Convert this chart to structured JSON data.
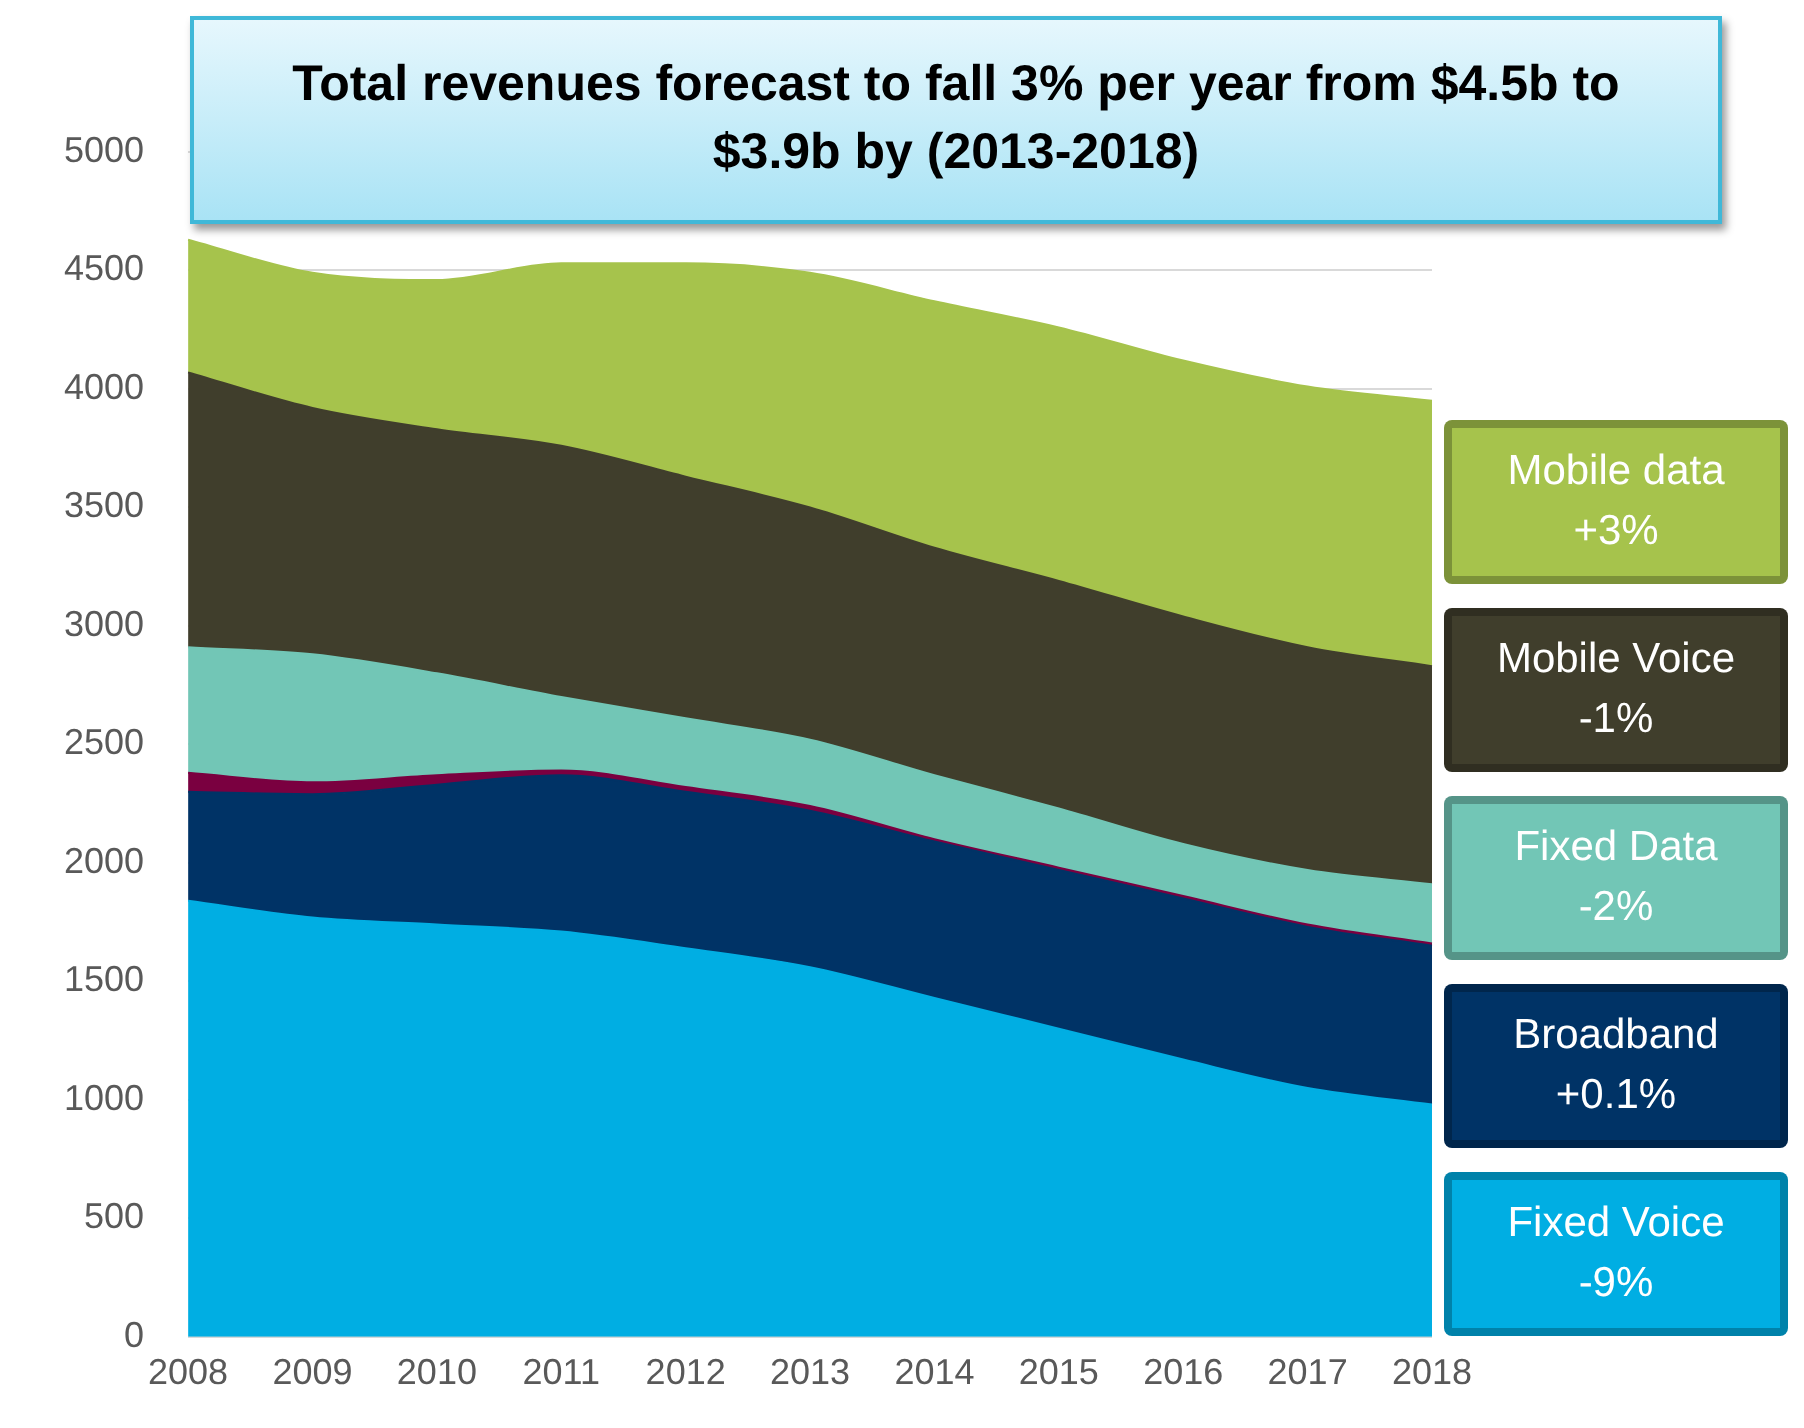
{
  "chart_data": {
    "type": "area",
    "title": "Total revenues forecast to fall 3% per year from $4.5b to $3.9b by (2013-2018)",
    "categories": [
      "2008",
      "2009",
      "2010",
      "2011",
      "2012",
      "2013",
      "2014",
      "2015",
      "2016",
      "2017",
      "2018"
    ],
    "stacked": true,
    "series": [
      {
        "name": "Fixed Voice -9%",
        "color": "#00aee3",
        "values": [
          1840,
          1770,
          1740,
          1710,
          1640,
          1560,
          1430,
          1300,
          1170,
          1050,
          980
        ]
      },
      {
        "name": "Broadband +0.1%",
        "color": "#003366",
        "values": [
          460,
          520,
          590,
          660,
          660,
          660,
          660,
          670,
          680,
          680,
          670
        ]
      },
      {
        "color": "#7a0040",
        "values": [
          80,
          50,
          40,
          20,
          20,
          20,
          10,
          10,
          10,
          10,
          10
        ]
      },
      {
        "name": "Fixed Data -2%",
        "color": "#72c6b6",
        "values": [
          530,
          540,
          430,
          310,
          290,
          280,
          270,
          250,
          220,
          230,
          250
        ]
      },
      {
        "name": "Mobile Voice -1%",
        "color": "#403e2c",
        "values": [
          1160,
          1040,
          1030,
          1060,
          1020,
          980,
          960,
          960,
          960,
          940,
          920
        ]
      },
      {
        "name": "Mobile data +3%",
        "color": "#a6c34c",
        "values": [
          560,
          570,
          630,
          770,
          900,
          990,
          1040,
          1070,
          1080,
          1100,
          1120
        ]
      }
    ],
    "ylim": [
      0,
      5000
    ],
    "yticks": [
      0,
      500,
      1000,
      1500,
      2000,
      2500,
      3000,
      3500,
      4000,
      4500,
      5000
    ],
    "grid": "y",
    "legend": "right"
  }
}
